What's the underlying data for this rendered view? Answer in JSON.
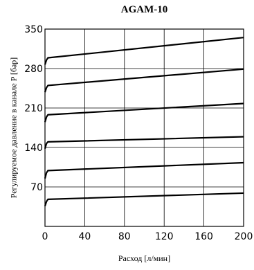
{
  "chart_data": {
    "type": "line",
    "title": "AGAM-10",
    "xlabel": "Расход [л/мин]",
    "ylabel": "Регулируемое давление в канале P [бар]",
    "xlim": [
      0,
      200
    ],
    "ylim": [
      0,
      350
    ],
    "x_ticks": [
      "0",
      "40",
      "80",
      "120",
      "160",
      "200"
    ],
    "y_ticks": [
      "70",
      "140",
      "210",
      "280",
      "350"
    ],
    "grid": true,
    "series": [
      {
        "points": [
          [
            0,
            36
          ],
          [
            1.5,
            44
          ],
          [
            3,
            48
          ],
          [
            200,
            59
          ]
        ]
      },
      {
        "points": [
          [
            0,
            85
          ],
          [
            1.5,
            95
          ],
          [
            3,
            99
          ],
          [
            200,
            113
          ]
        ]
      },
      {
        "points": [
          [
            0,
            138
          ],
          [
            1.5,
            147
          ],
          [
            3,
            150
          ],
          [
            200,
            159
          ]
        ]
      },
      {
        "points": [
          [
            0,
            185
          ],
          [
            1.5,
            194
          ],
          [
            3,
            198
          ],
          [
            200,
            218
          ]
        ]
      },
      {
        "points": [
          [
            0,
            238
          ],
          [
            1.5,
            246
          ],
          [
            3,
            250
          ],
          [
            200,
            279
          ]
        ]
      },
      {
        "points": [
          [
            0,
            287
          ],
          [
            1.5,
            295
          ],
          [
            3,
            299
          ],
          [
            200,
            335
          ]
        ]
      }
    ]
  }
}
